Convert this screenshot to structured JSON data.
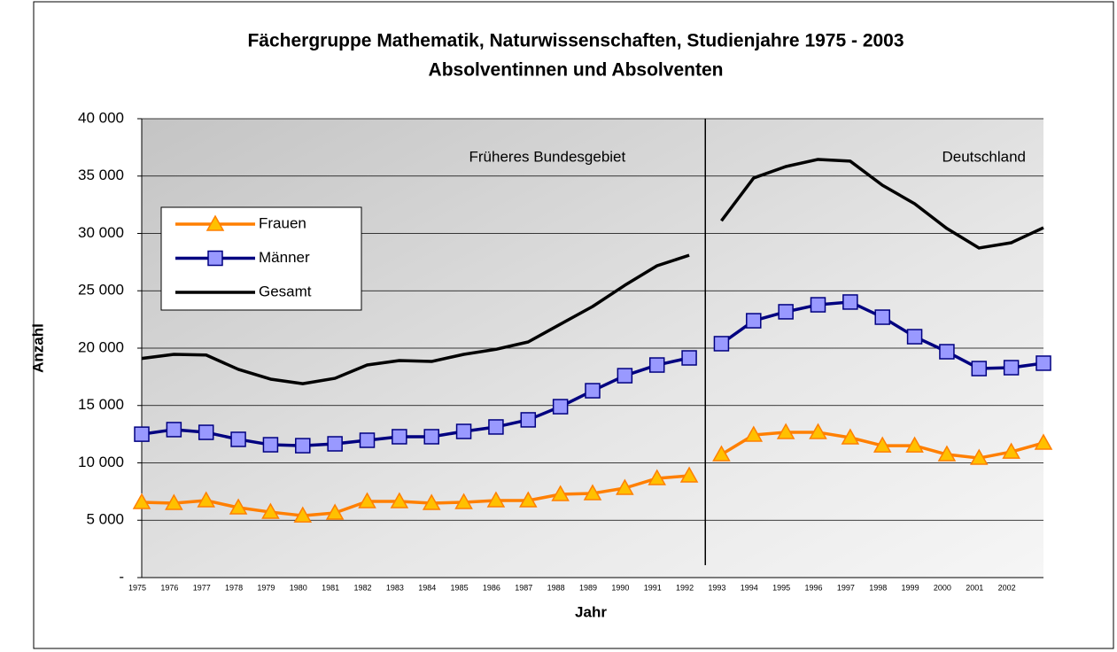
{
  "chart_data": {
    "type": "line",
    "title": [
      "Fächergruppe Mathematik, Naturwissenschaften, Studienjahre 1975 - 2003",
      "Absolventinnen und Absolventen"
    ],
    "x_label": "Jahr",
    "y_label": "Anzahl",
    "categories": [
      "1975",
      "1976",
      "1977",
      "1978",
      "1979",
      "1980",
      "1981",
      "1982",
      "1983",
      "1984",
      "1985",
      "1986",
      "1987",
      "1988",
      "1989",
      "1990",
      "1991",
      "1992",
      "1993",
      "1994",
      "1995",
      "1996",
      "1997",
      "1998",
      "1999",
      "2000",
      "2001",
      "2002",
      null
    ],
    "series": [
      {
        "name": "Frauen",
        "color": "#ff7f00",
        "marker": "triangle",
        "marker_color": "#ffc000",
        "values": [
          6560,
          6490,
          6720,
          6100,
          5710,
          5400,
          5640,
          6640,
          6640,
          6490,
          6560,
          6720,
          6720,
          7260,
          7340,
          7800,
          8650,
          8880,
          10730,
          12430,
          12660,
          12660,
          12200,
          11500,
          11500,
          10730,
          10420,
          10960,
          11740
        ]
      },
      {
        "name": "Männer",
        "color": "#000080",
        "marker": "square",
        "marker_color": "#9999ff",
        "values": [
          12500,
          12900,
          12660,
          12050,
          11580,
          11500,
          11660,
          11970,
          12280,
          12280,
          12740,
          13130,
          13750,
          14900,
          16290,
          17600,
          18530,
          19150,
          20390,
          22390,
          23170,
          23780,
          24020,
          22700,
          21000,
          19690,
          18220,
          18300,
          18690
        ]
      },
      {
        "name": "Gesamt",
        "color": "#000000",
        "marker": null,
        "marker_color": null,
        "values": [
          19100,
          19460,
          19400,
          18150,
          17300,
          16900,
          17370,
          18530,
          18920,
          18840,
          19460,
          19900,
          20540,
          22090,
          23630,
          25480,
          27180,
          28100,
          31100,
          34830,
          35830,
          36450,
          36300,
          34200,
          32590,
          30430,
          28730,
          29190,
          30500
        ]
      }
    ],
    "regions": [
      {
        "label": "Früheres Bundesgebiet",
        "first": "1975"
      },
      {
        "label": "Deutschland",
        "first": "1993"
      }
    ],
    "ylim": [
      0,
      40000
    ],
    "yticks": [
      {
        "value": 0,
        "label": "-"
      },
      {
        "value": 5000,
        "label": "5 000"
      },
      {
        "value": 10000,
        "label": "10 000"
      },
      {
        "value": 15000,
        "label": "15 000"
      },
      {
        "value": 20000,
        "label": "20 000"
      },
      {
        "value": 25000,
        "label": "25 000"
      },
      {
        "value": 30000,
        "label": "30 000"
      },
      {
        "value": 35000,
        "label": "35 000"
      },
      {
        "value": 40000,
        "label": "40 000"
      }
    ],
    "grid": true,
    "legend": "upper left"
  }
}
